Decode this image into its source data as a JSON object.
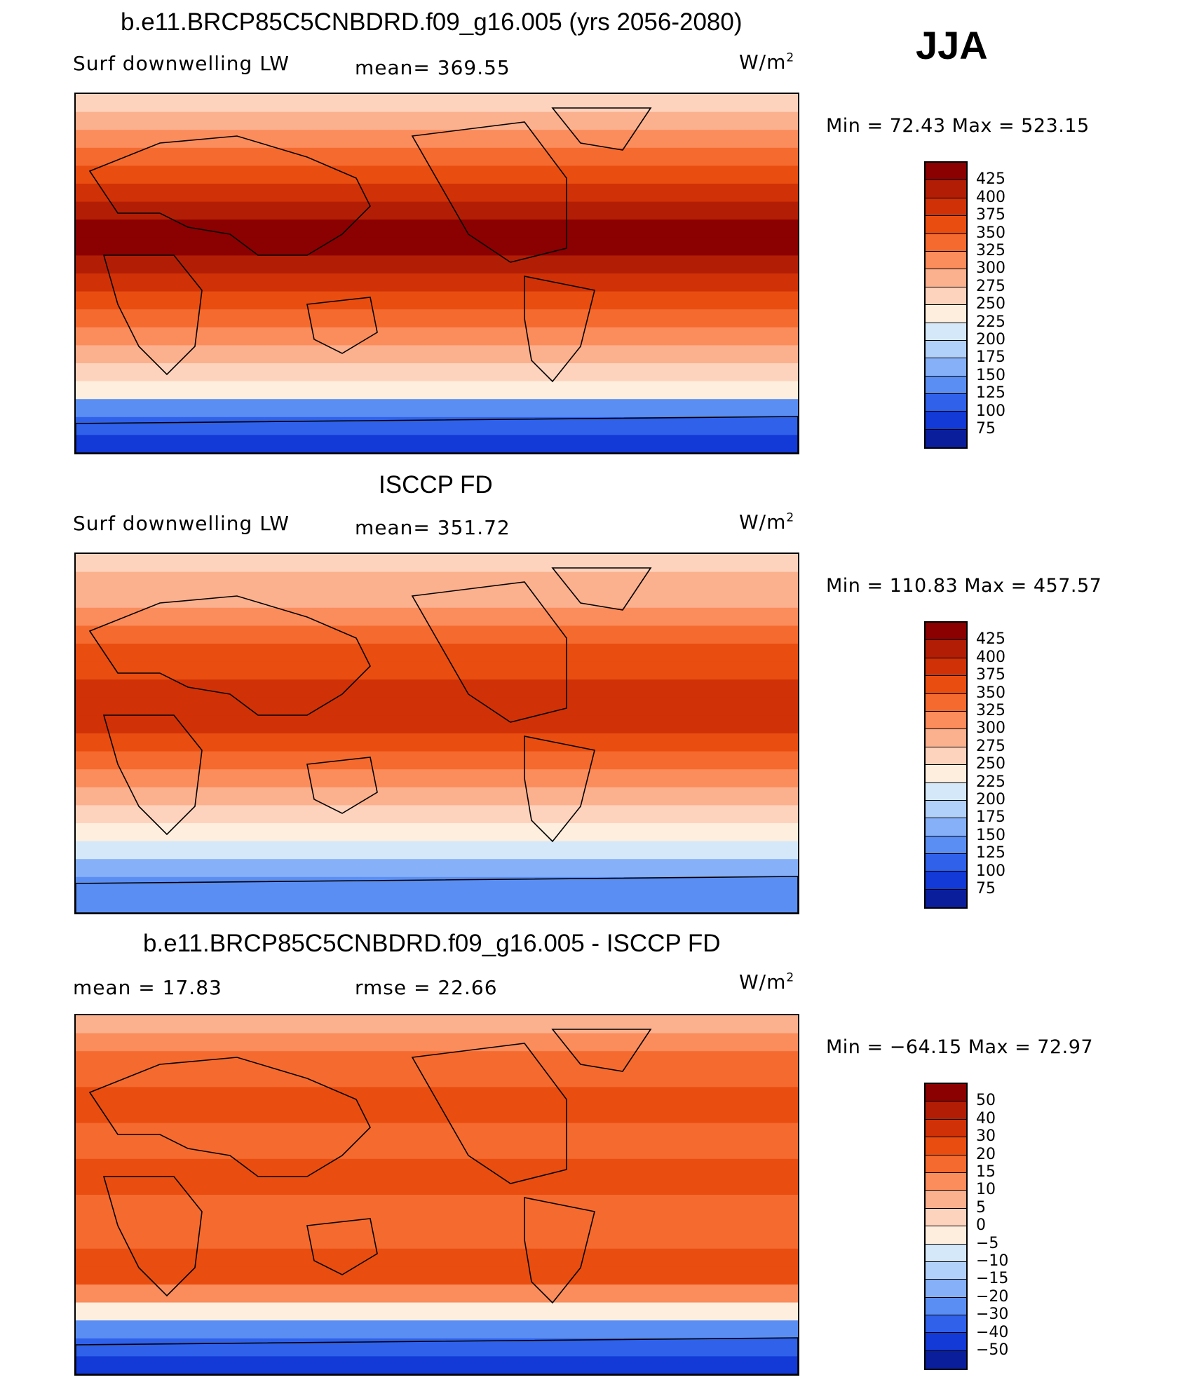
{
  "page_title": "b.e11.BRCP85C5CNBDRD.f09_g16.005 (yrs 2056-2080)",
  "season": "JJA",
  "panels": [
    {
      "title": "",
      "left_label": "Surf downwelling LW",
      "stat_text": "mean= 369.55",
      "unit": "W/m",
      "unit_sup": "2",
      "min_max": "Min =   72.43 Max = 523.15",
      "levels": [
        "425",
        "400",
        "375",
        "350",
        "325",
        "300",
        "275",
        "250",
        "225",
        "200",
        "175",
        "150",
        "125",
        "100",
        "75"
      ],
      "colors": [
        "#8b0000",
        "#b21e05",
        "#d13106",
        "#e94d10",
        "#f56a2e",
        "#fb8c5c",
        "#fbb08e",
        "#fdd3bd",
        "#fdeede",
        "#d5e8fa",
        "#b2d1fa",
        "#86b0f7",
        "#5b8ef3",
        "#2f61ea",
        "#1339d6",
        "#0a1e9c"
      ]
    },
    {
      "title": "ISCCP FD",
      "left_label": "Surf downwelling LW",
      "stat_text": "mean= 351.72",
      "unit": "W/m",
      "unit_sup": "2",
      "min_max": "Min = 110.83 Max = 457.57",
      "levels": [
        "425",
        "400",
        "375",
        "350",
        "325",
        "300",
        "275",
        "250",
        "225",
        "200",
        "175",
        "150",
        "125",
        "100",
        "75"
      ],
      "colors": [
        "#8b0000",
        "#b21e05",
        "#d13106",
        "#e94d10",
        "#f56a2e",
        "#fb8c5c",
        "#fbb08e",
        "#fdd3bd",
        "#fdeede",
        "#d5e8fa",
        "#b2d1fa",
        "#86b0f7",
        "#5b8ef3",
        "#2f61ea",
        "#1339d6",
        "#0a1e9c"
      ]
    },
    {
      "title": "b.e11.BRCP85C5CNBDRD.f09_g16.005 - ISCCP FD",
      "left_label": "mean =   17.83",
      "stat_text": "rmse =   22.66",
      "unit": "W/m",
      "unit_sup": "2",
      "min_max": "Min = −64.15 Max =   72.97",
      "levels": [
        "50",
        "40",
        "30",
        "20",
        "15",
        "10",
        "5",
        "0",
        "−5",
        "−10",
        "−15",
        "−20",
        "−30",
        "−40",
        "−50"
      ],
      "colors": [
        "#8b0000",
        "#b21e05",
        "#d13106",
        "#e94d10",
        "#f56a2e",
        "#fb8c5c",
        "#fbb08e",
        "#fdd3bd",
        "#fdeede",
        "#d5e8fa",
        "#b2d1fa",
        "#86b0f7",
        "#5b8ef3",
        "#2f61ea",
        "#1339d6",
        "#0a1e9c"
      ]
    }
  ]
}
